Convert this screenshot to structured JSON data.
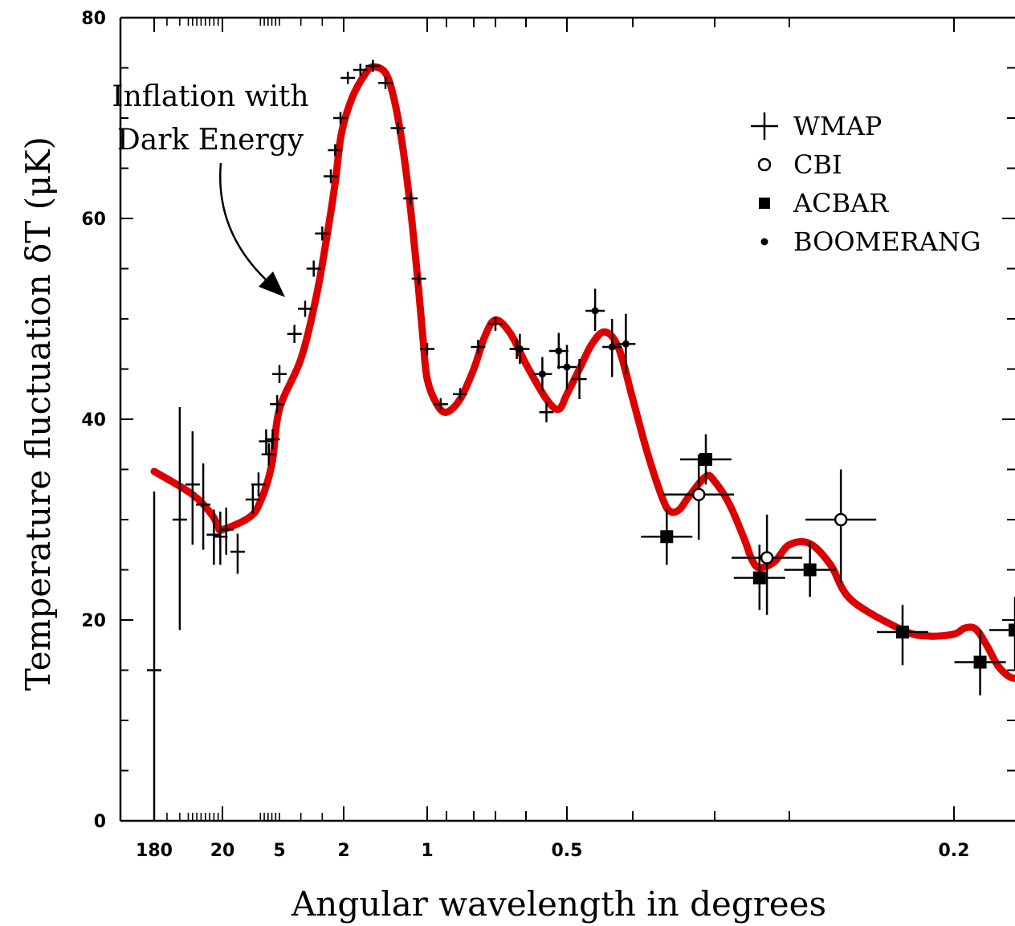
{
  "chart_data": {
    "type": "scatter",
    "title": "",
    "xlabel": "Angular wavelength in degrees",
    "ylabel": "Temperature fluctuation δT (μK)",
    "ylim": [
      0,
      80
    ],
    "yticks": [
      0,
      20,
      40,
      60,
      80
    ],
    "x_axis": {
      "scale": "angular wavelength in degrees (nonlinear)",
      "tick_labels": [
        "180",
        "20",
        "5",
        "2",
        "1",
        "0.5",
        "0.2"
      ]
    },
    "grid": false,
    "legend": {
      "position": "top-right",
      "entries": [
        {
          "label": "WMAP",
          "marker": "plus"
        },
        {
          "label": "CBI",
          "marker": "open-circle"
        },
        {
          "label": "ACBAR",
          "marker": "filled-square"
        },
        {
          "label": "BOOMERANG",
          "marker": "small-dot"
        }
      ]
    },
    "annotation": {
      "line1": "Inflation with",
      "line2": "Dark Energy"
    },
    "series": [
      {
        "name": "Inflation with Dark Energy",
        "kind": "curve",
        "color": "#dd0000",
        "points": [
          [
            180,
            34.8
          ],
          [
            90,
            32.5
          ],
          [
            45,
            30.5
          ],
          [
            30,
            29.3
          ],
          [
            20,
            29.0
          ],
          [
            13,
            30.2
          ],
          [
            10,
            31.8
          ],
          [
            7,
            35.5
          ],
          [
            5,
            41.0
          ],
          [
            4,
            46.0
          ],
          [
            3.3,
            52.0
          ],
          [
            2.8,
            58.0
          ],
          [
            2.4,
            63.5
          ],
          [
            2.1,
            68.5
          ],
          [
            1.9,
            72.0
          ],
          [
            1.75,
            74.3
          ],
          [
            1.65,
            75.1
          ],
          [
            1.5,
            74.5
          ],
          [
            1.4,
            72.0
          ],
          [
            1.3,
            67.5
          ],
          [
            1.2,
            61.0
          ],
          [
            1.12,
            54.5
          ],
          [
            1.05,
            48.0
          ],
          [
            1.0,
            44.0
          ],
          [
            0.95,
            41.5
          ],
          [
            0.9,
            40.7
          ],
          [
            0.85,
            42.0
          ],
          [
            0.8,
            45.0
          ],
          [
            0.75,
            48.2
          ],
          [
            0.7,
            49.9
          ],
          [
            0.65,
            48.5
          ],
          [
            0.6,
            45.5
          ],
          [
            0.55,
            42.0
          ],
          [
            0.52,
            41.0
          ],
          [
            0.5,
            42.5
          ],
          [
            0.48,
            45.0
          ],
          [
            0.46,
            47.5
          ],
          [
            0.44,
            48.7
          ],
          [
            0.42,
            47.0
          ],
          [
            0.4,
            42.0
          ],
          [
            0.38,
            36.5
          ],
          [
            0.36,
            32.0
          ],
          [
            0.35,
            30.8
          ],
          [
            0.34,
            31.0
          ],
          [
            0.33,
            32.2
          ],
          [
            0.31,
            34.3
          ],
          [
            0.3,
            33.8
          ],
          [
            0.29,
            31.5
          ],
          [
            0.28,
            28.0
          ],
          [
            0.275,
            26.0
          ],
          [
            0.27,
            25.2
          ],
          [
            0.26,
            25.8
          ],
          [
            0.25,
            27.5
          ],
          [
            0.24,
            27.6
          ],
          [
            0.23,
            25.5
          ],
          [
            0.22,
            22.0
          ],
          [
            0.21,
            19.0
          ],
          [
            0.205,
            18.4
          ],
          [
            0.2,
            18.6
          ],
          [
            0.195,
            19.2
          ],
          [
            0.19,
            19.1
          ],
          [
            0.185,
            17.5
          ],
          [
            0.18,
            15.5
          ],
          [
            0.175,
            14.4
          ],
          [
            0.172,
            14.2
          ]
        ]
      },
      {
        "name": "WMAP",
        "kind": "plus",
        "points": [
          {
            "x": 180,
            "y": 15.0,
            "ylo": 0.0,
            "yhi": 32.8
          },
          {
            "x": 120,
            "y": 30.0,
            "ylo": 19.0,
            "yhi": 41.2
          },
          {
            "x": 90,
            "y": 33.5,
            "ylo": 27.5,
            "yhi": 38.8
          },
          {
            "x": 65,
            "y": 31.5,
            "ylo": 27.0,
            "yhi": 35.6
          },
          {
            "x": 40,
            "y": 28.5,
            "ylo": 25.5,
            "yhi": 31.0
          },
          {
            "x": 25,
            "y": 28.3,
            "ylo": 25.5,
            "yhi": 30.8
          },
          {
            "x": 19,
            "y": 29.0,
            "ylo": 26.5,
            "yhi": 31.2
          },
          {
            "x": 16,
            "y": 26.8,
            "ylo": 24.6,
            "yhi": 28.6
          },
          {
            "x": 12,
            "y": 32.0,
            "ylo": 30.6,
            "yhi": 33.4
          },
          {
            "x": 10.5,
            "y": 33.5,
            "ylo": 32.3,
            "yhi": 34.7
          },
          {
            "x": 8.5,
            "y": 37.8,
            "ylo": 36.6,
            "yhi": 39.0
          },
          {
            "x": 7.8,
            "y": 36.5,
            "ylo": 35.4,
            "yhi": 37.6
          },
          {
            "x": 6.8,
            "y": 38.0,
            "ylo": 37.0,
            "yhi": 39.0
          },
          {
            "x": 5.6,
            "y": 41.5,
            "ylo": 40.6,
            "yhi": 42.4
          },
          {
            "x": 5.0,
            "y": 44.5,
            "ylo": 43.6,
            "yhi": 45.4
          },
          {
            "x": 4.3,
            "y": 48.5,
            "ylo": 47.6,
            "yhi": 49.4
          },
          {
            "x": 3.8,
            "y": 51.0,
            "ylo": 50.2,
            "yhi": 51.8
          },
          {
            "x": 3.4,
            "y": 55.0,
            "ylo": 54.2,
            "yhi": 55.8
          },
          {
            "x": 3.0,
            "y": 58.5,
            "ylo": 57.8,
            "yhi": 59.2
          },
          {
            "x": 2.6,
            "y": 64.2,
            "ylo": 63.5,
            "yhi": 64.9
          },
          {
            "x": 2.4,
            "y": 66.8,
            "ylo": 66.2,
            "yhi": 67.4
          },
          {
            "x": 2.15,
            "y": 70.0,
            "ylo": 69.4,
            "yhi": 70.6
          },
          {
            "x": 1.95,
            "y": 74.0,
            "ylo": 73.4,
            "yhi": 74.6
          },
          {
            "x": 1.8,
            "y": 74.8,
            "ylo": 74.2,
            "yhi": 75.4
          },
          {
            "x": 1.65,
            "y": 75.2,
            "ylo": 74.6,
            "yhi": 75.8
          },
          {
            "x": 1.5,
            "y": 73.5,
            "ylo": 72.9,
            "yhi": 74.1
          },
          {
            "x": 1.35,
            "y": 69.0,
            "ylo": 68.4,
            "yhi": 69.6
          },
          {
            "x": 1.2,
            "y": 62.0,
            "ylo": 61.4,
            "yhi": 62.6
          },
          {
            "x": 1.1,
            "y": 54.0,
            "ylo": 53.4,
            "yhi": 54.6
          },
          {
            "x": 1.0,
            "y": 47.0,
            "ylo": 46.4,
            "yhi": 47.6
          },
          {
            "x": 0.93,
            "y": 41.5,
            "ylo": 40.9,
            "yhi": 42.1
          },
          {
            "x": 0.85,
            "y": 42.5,
            "ylo": 41.9,
            "yhi": 43.1
          },
          {
            "x": 0.78,
            "y": 47.2,
            "ylo": 46.5,
            "yhi": 47.9
          },
          {
            "x": 0.7,
            "y": 49.5,
            "ylo": 48.8,
            "yhi": 50.2
          },
          {
            "x": 0.63,
            "y": 47.0,
            "ylo": 46.0,
            "yhi": 48.0
          },
          {
            "x": 0.55,
            "y": 40.7,
            "ylo": 39.7,
            "yhi": 41.7
          },
          {
            "x": 0.48,
            "y": 44.0,
            "ylo": 42.0,
            "yhi": 46.0
          }
        ]
      },
      {
        "name": "CBI",
        "kind": "open-circle",
        "points": [
          {
            "x": 0.318,
            "y": 32.5,
            "ylo": 28.0,
            "yhi": 36.5
          },
          {
            "x": 0.265,
            "y": 26.2,
            "ylo": 20.5,
            "yhi": 30.5
          },
          {
            "x": 0.225,
            "y": 30.0,
            "ylo": 23.7,
            "yhi": 35.0
          }
        ]
      },
      {
        "name": "ACBAR",
        "kind": "filled-square",
        "points": [
          {
            "x": 0.355,
            "y": 28.3,
            "ylo": 25.5,
            "yhi": 31.0
          },
          {
            "x": 0.31,
            "y": 36.0,
            "ylo": 33.5,
            "yhi": 38.5
          },
          {
            "x": 0.27,
            "y": 24.2,
            "ylo": 21.0,
            "yhi": 27.5
          },
          {
            "x": 0.24,
            "y": 25.0,
            "ylo": 22.3,
            "yhi": 27.8
          },
          {
            "x": 0.21,
            "y": 18.8,
            "ylo": 15.5,
            "yhi": 21.5
          },
          {
            "x": 0.188,
            "y": 15.8,
            "ylo": 12.5,
            "yhi": 19.0
          },
          {
            "x": 0.172,
            "y": 19.0,
            "ylo": 15.0,
            "yhi": 22.3
          }
        ]
      },
      {
        "name": "BOOMERANG",
        "kind": "small-dot",
        "points": [
          {
            "x": 0.62,
            "y": 47.0,
            "ylo": 45.5,
            "yhi": 48.5
          },
          {
            "x": 0.56,
            "y": 44.5,
            "ylo": 42.8,
            "yhi": 46.2
          },
          {
            "x": 0.52,
            "y": 46.8,
            "ylo": 45.0,
            "yhi": 48.6
          },
          {
            "x": 0.5,
            "y": 45.2,
            "ylo": 43.0,
            "yhi": 47.4
          },
          {
            "x": 0.455,
            "y": 50.8,
            "ylo": 48.8,
            "yhi": 53.0
          },
          {
            "x": 0.43,
            "y": 47.2,
            "ylo": 44.2,
            "yhi": 50.0
          },
          {
            "x": 0.41,
            "y": 47.5,
            "ylo": 44.5,
            "yhi": 50.5
          }
        ]
      }
    ]
  }
}
